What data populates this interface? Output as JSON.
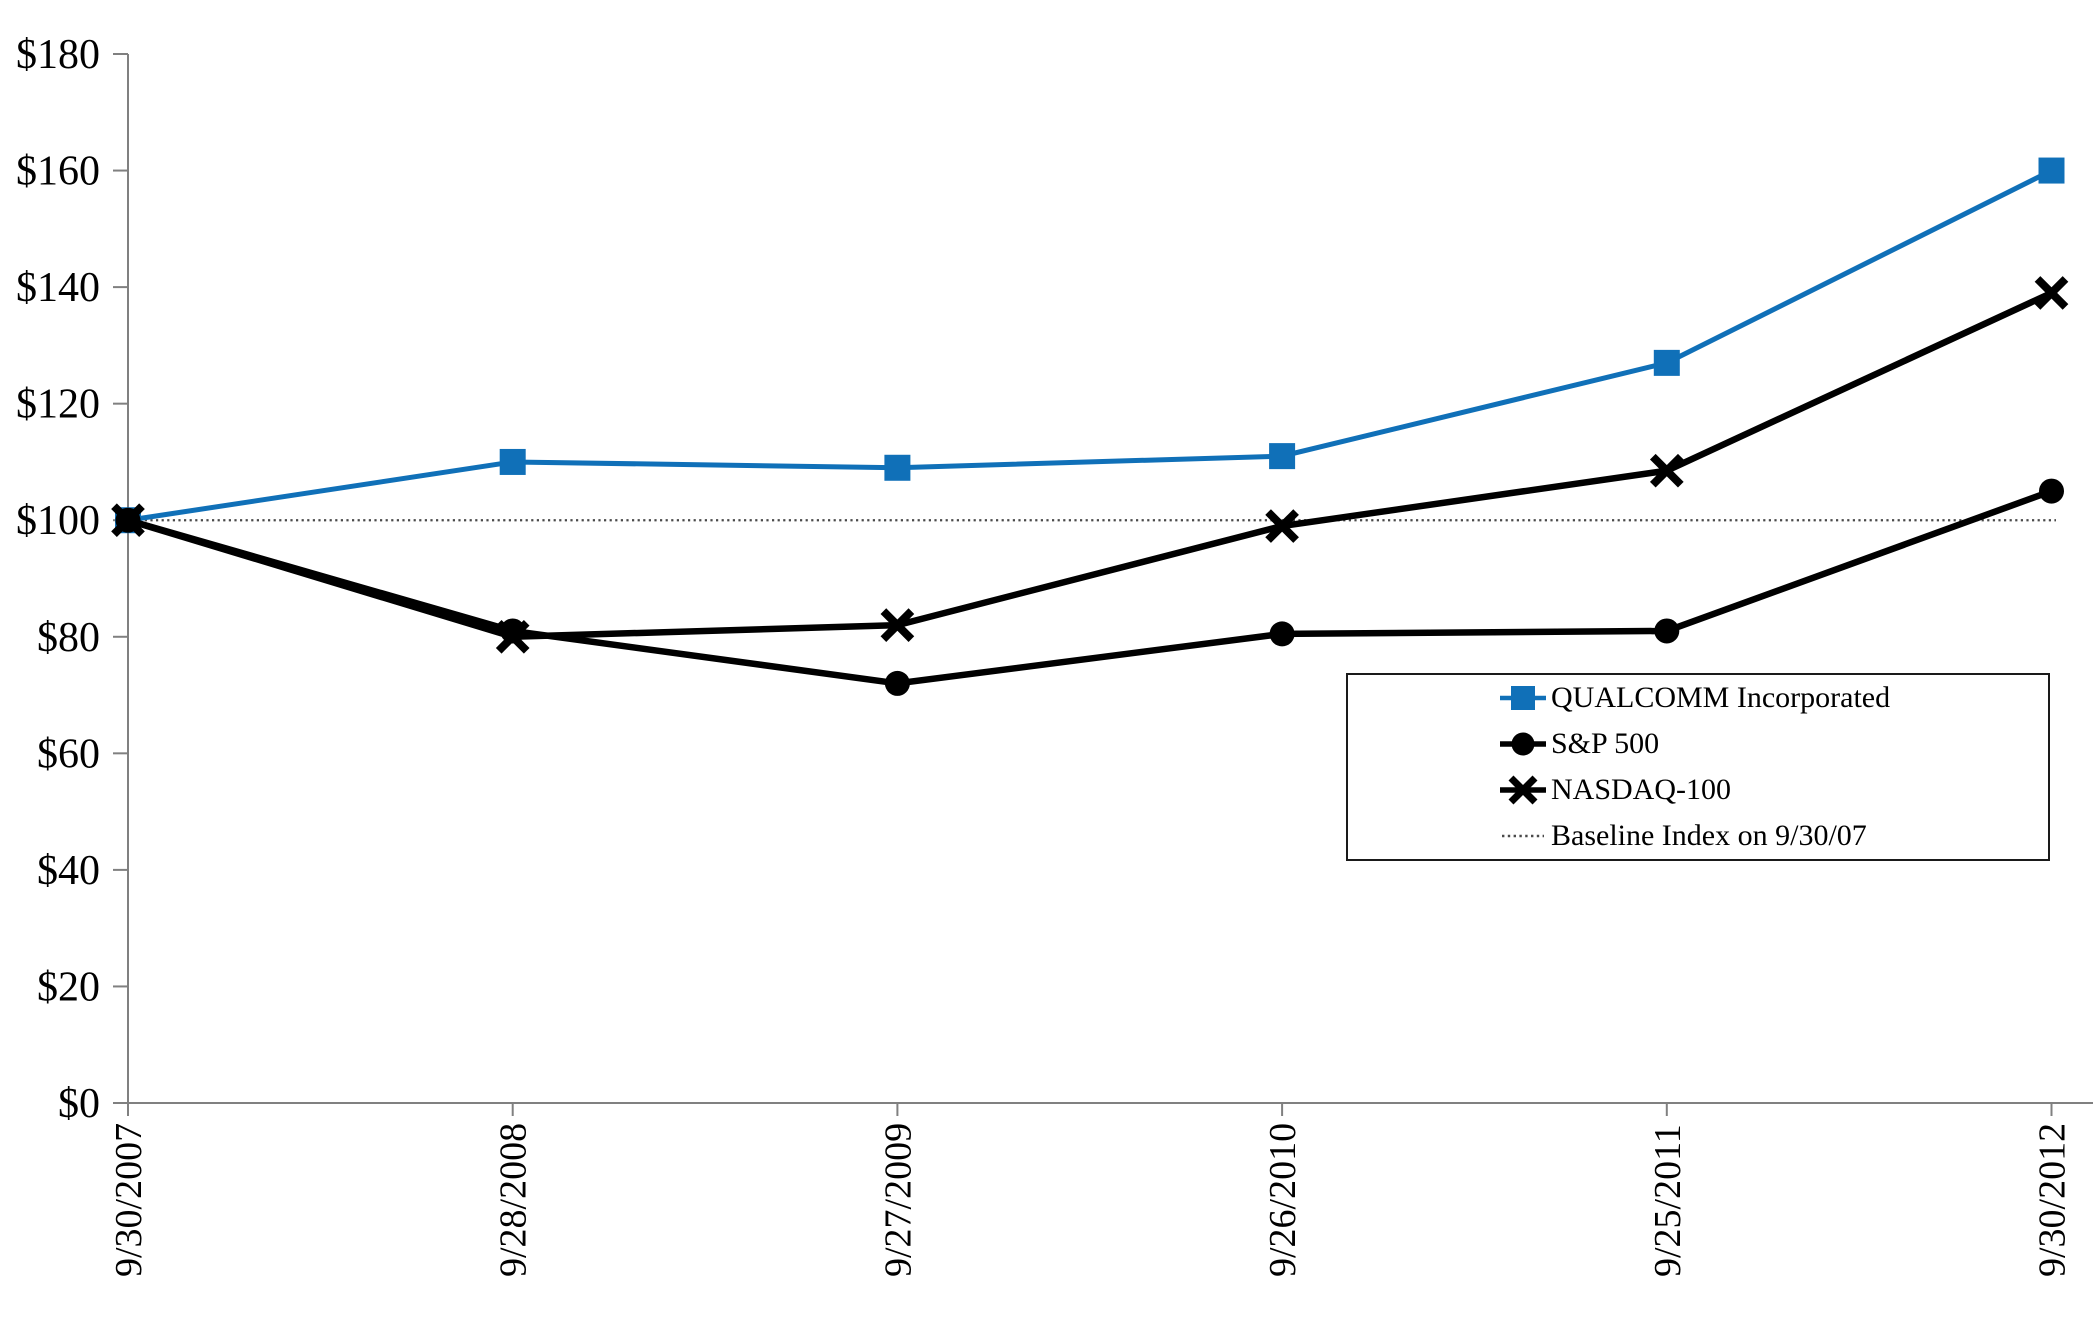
{
  "chart_data": {
    "type": "line",
    "title": "",
    "xlabel": "",
    "ylabel": "",
    "categories": [
      "9/30/2007",
      "9/28/2008",
      "9/27/2009",
      "9/26/2010",
      "9/25/2011",
      "9/30/2012"
    ],
    "y_tick_labels": [
      "$0",
      "$20",
      "$40",
      "$60",
      "$80",
      "$100",
      "$120",
      "$140",
      "$160",
      "$180"
    ],
    "ylim": [
      0,
      180
    ],
    "y_step": 20,
    "grid": "off",
    "legend_position": "middle-right",
    "axis_color": "#808080",
    "series": [
      {
        "name": "QUALCOMM Incorporated",
        "marker": "square",
        "line": "solid",
        "color": "#1070b8",
        "values": [
          100,
          110,
          109,
          111,
          127,
          160
        ]
      },
      {
        "name": "S&P 500",
        "marker": "circle",
        "line": "solid",
        "color": "#000000",
        "values": [
          100,
          81,
          72,
          80.5,
          81,
          105
        ]
      },
      {
        "name": "NASDAQ-100",
        "marker": "x",
        "line": "solid",
        "color": "#000000",
        "values": [
          100,
          80,
          82,
          99,
          108.5,
          139
        ]
      },
      {
        "name": "Baseline Index on 9/30/07",
        "marker": "none",
        "line": "dotted",
        "color": "#4a4a4a",
        "values": [
          100,
          100,
          100,
          100,
          100,
          100
        ]
      }
    ]
  }
}
